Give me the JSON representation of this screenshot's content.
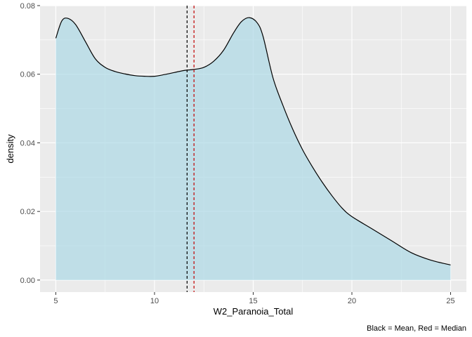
{
  "chart_data": {
    "type": "area",
    "title": "",
    "xlabel": "W2_Paranoia_Total",
    "ylabel": "density",
    "caption": "Black = Mean, Red = Median",
    "xlim": [
      4.2,
      25.8
    ],
    "ylim": [
      -0.0035,
      0.08
    ],
    "x_ticks": [
      5,
      10,
      15,
      20,
      25
    ],
    "x_tick_labels": [
      "5",
      "10",
      "15",
      "20",
      "25"
    ],
    "y_ticks": [
      0.0,
      0.02,
      0.04,
      0.06,
      0.08
    ],
    "y_tick_labels": [
      "0.00",
      "0.02",
      "0.04",
      "0.06",
      "0.08"
    ],
    "grid": true,
    "fill_color": "#add8e6",
    "fill_opacity": 0.7,
    "line_color": "#000000",
    "series": [
      {
        "name": "density",
        "x": [
          5.0,
          5.3,
          5.6,
          6.0,
          6.5,
          7.0,
          7.5,
          8.0,
          8.5,
          9.0,
          9.5,
          10.0,
          10.5,
          11.0,
          11.5,
          12.0,
          12.5,
          13.0,
          13.5,
          14.0,
          14.4,
          14.8,
          15.2,
          15.5,
          16.0,
          16.5,
          17.0,
          17.5,
          18.0,
          18.5,
          19.0,
          19.5,
          20.0,
          21.0,
          22.0,
          23.0,
          24.0,
          25.0
        ],
        "y": [
          0.0705,
          0.0755,
          0.0763,
          0.0745,
          0.0695,
          0.0645,
          0.062,
          0.0608,
          0.0601,
          0.0596,
          0.0594,
          0.0594,
          0.0599,
          0.0605,
          0.0611,
          0.0614,
          0.062,
          0.0638,
          0.067,
          0.072,
          0.0753,
          0.0765,
          0.075,
          0.071,
          0.059,
          0.051,
          0.044,
          0.038,
          0.033,
          0.0285,
          0.0245,
          0.021,
          0.0185,
          0.015,
          0.0115,
          0.008,
          0.0058,
          0.0044
        ]
      }
    ],
    "reference_lines": [
      {
        "name": "Mean",
        "x": 11.65,
        "color": "#000000",
        "style": "dashed"
      },
      {
        "name": "Median",
        "x": 12.0,
        "color": "#c00000",
        "style": "dashed"
      }
    ]
  }
}
